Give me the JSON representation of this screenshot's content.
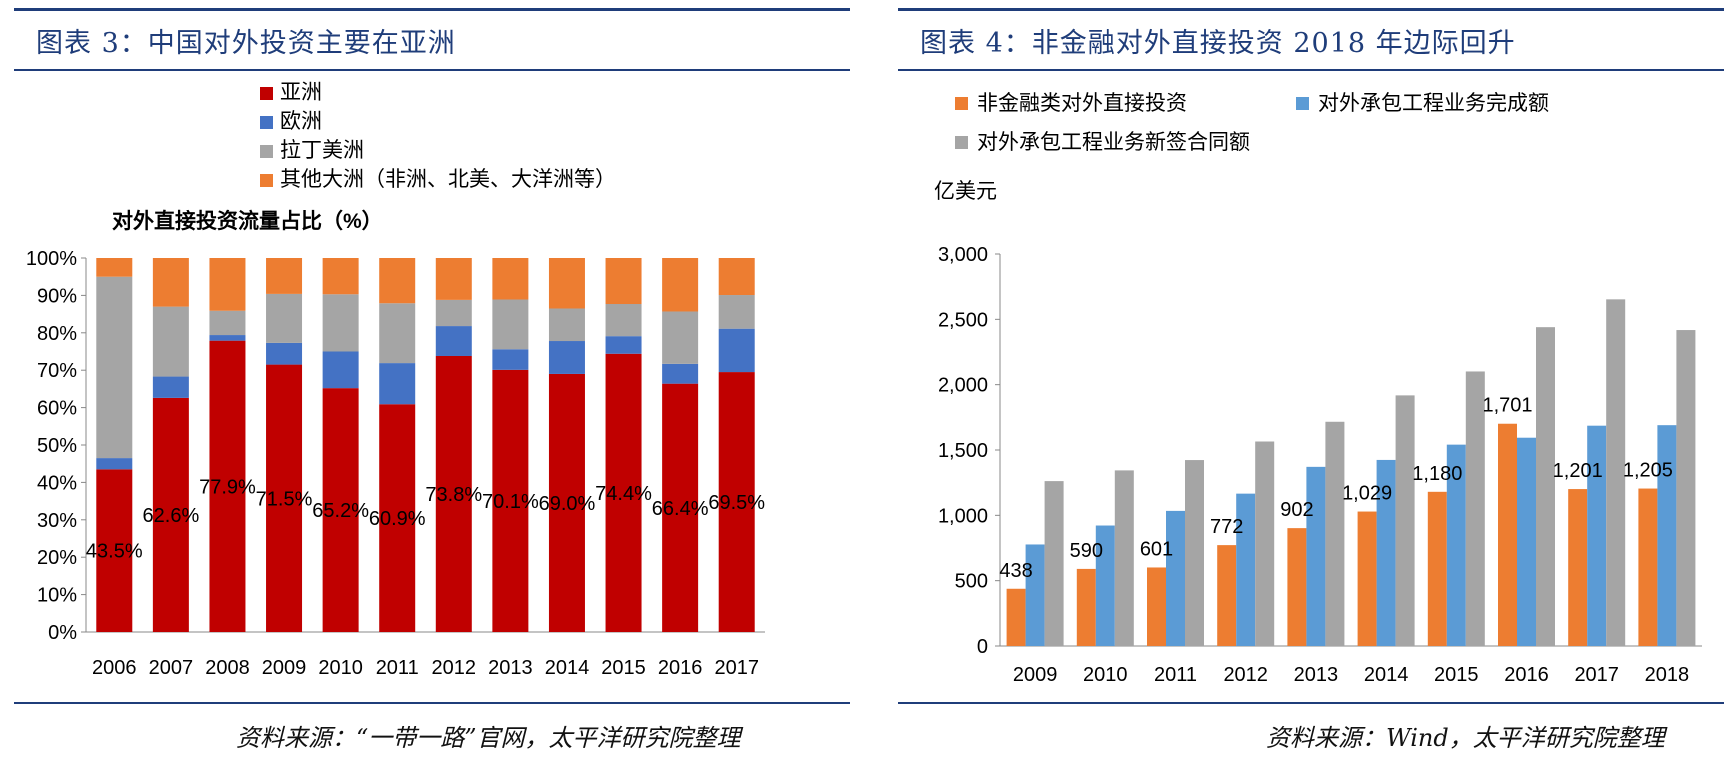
{
  "left": {
    "title": "图表 3：中国对外投资主要在亚洲",
    "source": "资料来源：“一带一路”官网，太平洋研究院整理"
  },
  "right": {
    "title": "图表 4：非金融对外直接投资 2018 年边际回升",
    "source": "资料来源：Wind，太平洋研究院整理"
  },
  "chart_data": [
    {
      "type": "bar",
      "stacked": true,
      "title": "对外直接投资流量占比（%）",
      "categories": [
        "2006",
        "2007",
        "2008",
        "2009",
        "2010",
        "2011",
        "2012",
        "2013",
        "2014",
        "2015",
        "2016",
        "2017"
      ],
      "series": [
        {
          "name": "亚洲",
          "color": "#c00000",
          "values": [
            43.5,
            62.6,
            77.9,
            71.5,
            65.2,
            60.9,
            73.8,
            70.1,
            69.0,
            74.4,
            66.4,
            69.5
          ]
        },
        {
          "name": "欧洲",
          "color": "#4472c4",
          "values": [
            3.0,
            5.7,
            1.5,
            5.8,
            9.8,
            11.0,
            8.0,
            5.5,
            8.8,
            4.7,
            5.3,
            11.6
          ]
        },
        {
          "name": "拉丁美洲",
          "color": "#a5a5a5",
          "values": [
            48.5,
            18.7,
            6.5,
            13.1,
            15.3,
            16.0,
            7.0,
            13.3,
            8.7,
            8.6,
            14.0,
            9.0
          ]
        },
        {
          "name": "其他大洲（非洲、北美、大洋洲等）",
          "color": "#ed7d31",
          "values": [
            5.0,
            13.0,
            14.1,
            9.6,
            9.7,
            12.1,
            11.2,
            11.1,
            13.5,
            12.3,
            14.3,
            9.9
          ]
        }
      ],
      "data_labels": [
        "43.5%",
        "62.6%",
        "77.9%",
        "71.5%",
        "65.2%",
        "60.9%",
        "73.8%",
        "70.1%",
        "69.0%",
        "74.4%",
        "66.4%",
        "69.5%"
      ],
      "yticks": [
        "0%",
        "10%",
        "20%",
        "30%",
        "40%",
        "50%",
        "60%",
        "70%",
        "80%",
        "90%",
        "100%"
      ],
      "ylim": [
        0,
        100
      ],
      "grid": false,
      "legend": "top-left"
    },
    {
      "type": "bar",
      "title": "",
      "ylabel": "亿美元",
      "categories": [
        "2009",
        "2010",
        "2011",
        "2012",
        "2013",
        "2014",
        "2015",
        "2016",
        "2017",
        "2018"
      ],
      "series": [
        {
          "name": "非金融类对外直接投资",
          "color": "#ed7d31",
          "values": [
            438,
            590,
            601,
            772,
            902,
            1029,
            1180,
            1701,
            1201,
            1205
          ]
        },
        {
          "name": "对外承包工程业务完成额",
          "color": "#5b9bd5",
          "values": [
            777,
            922,
            1034,
            1166,
            1371,
            1424,
            1541,
            1594,
            1686,
            1690
          ]
        },
        {
          "name": "对外承包工程业务新签合同额",
          "color": "#a5a5a5",
          "values": [
            1262,
            1344,
            1423,
            1565,
            1716,
            1918,
            2101,
            2440,
            2653,
            2418
          ]
        }
      ],
      "data_labels": [
        "438",
        "590",
        "601",
        "772",
        "902",
        "1,029",
        "1,180",
        "1,701",
        "1,201",
        "1,205"
      ],
      "yticks": [
        "0",
        "500",
        "1,000",
        "1,500",
        "2,000",
        "2,500",
        "3,000"
      ],
      "ylim": [
        0,
        3000
      ],
      "grid": false,
      "legend": "top"
    }
  ]
}
